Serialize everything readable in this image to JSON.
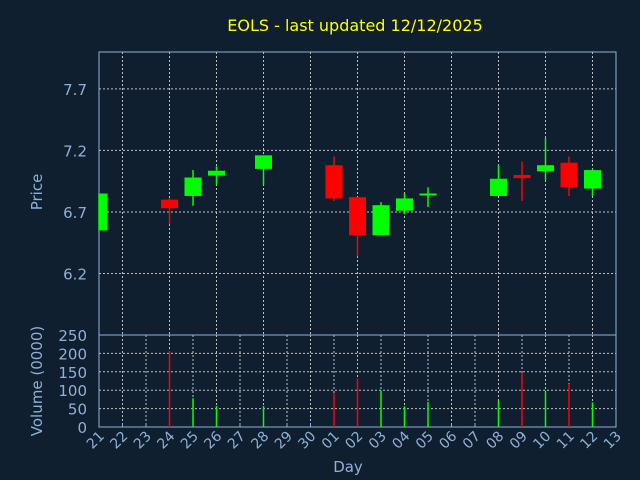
{
  "chart_data": {
    "type": "candlestick",
    "title": "EOLS - last updated 12/12/2025",
    "xlabel": "Day",
    "ylabel": "Price",
    "volume_label": "Volume (0000)",
    "x_ticks": [
      "21",
      "22",
      "23",
      "24",
      "25",
      "26",
      "27",
      "28",
      "29",
      "30",
      "01",
      "02",
      "03",
      "04",
      "05",
      "06",
      "07",
      "08",
      "09",
      "10",
      "11",
      "12",
      "13"
    ],
    "price_ticks": [
      6.2,
      6.7,
      7.2,
      7.7
    ],
    "price_ylim": [
      5.7,
      8.0
    ],
    "volume_ticks": [
      0,
      50,
      100,
      150,
      200,
      250
    ],
    "volume_ylim": [
      0,
      250
    ],
    "grid": true,
    "colors": {
      "up": "#00ff00",
      "down": "#ff0000",
      "title": "#ffff00",
      "axis": "#8fb0d8",
      "grid": "#c0c0c0",
      "background": "#0f1f30"
    },
    "candles": [
      {
        "day": "21",
        "open": 6.55,
        "high": 6.85,
        "low": 6.55,
        "close": 6.85,
        "volume": 0
      },
      {
        "day": "24",
        "open": 6.8,
        "high": 6.81,
        "low": 6.6,
        "close": 6.73,
        "volume": 207
      },
      {
        "day": "25",
        "open": 6.83,
        "high": 7.04,
        "low": 6.75,
        "close": 6.98,
        "volume": 78
      },
      {
        "day": "26",
        "open": 6.995,
        "high": 7.07,
        "low": 6.92,
        "close": 7.035,
        "volume": 57
      },
      {
        "day": "28",
        "open": 7.05,
        "high": 7.16,
        "low": 6.92,
        "close": 7.16,
        "volume": 57
      },
      {
        "day": "01",
        "open": 7.08,
        "high": 7.15,
        "low": 6.79,
        "close": 6.81,
        "volume": 92
      },
      {
        "day": "02",
        "open": 6.82,
        "high": 6.82,
        "low": 6.34,
        "close": 6.51,
        "volume": 132
      },
      {
        "day": "03",
        "open": 6.51,
        "high": 6.78,
        "low": 6.51,
        "close": 6.755,
        "volume": 99
      },
      {
        "day": "04",
        "open": 6.71,
        "high": 6.85,
        "low": 6.68,
        "close": 6.81,
        "volume": 56
      },
      {
        "day": "05",
        "open": 6.84,
        "high": 6.9,
        "low": 6.74,
        "close": 6.85,
        "volume": 68
      },
      {
        "day": "08",
        "open": 6.83,
        "high": 7.08,
        "low": 6.83,
        "close": 6.97,
        "volume": 71
      },
      {
        "day": "09",
        "open": 7.0,
        "high": 7.11,
        "low": 6.79,
        "close": 6.975,
        "volume": 146
      },
      {
        "day": "10",
        "open": 7.03,
        "high": 7.3,
        "low": 6.96,
        "close": 7.08,
        "volume": 99
      },
      {
        "day": "11",
        "open": 7.1,
        "high": 7.15,
        "low": 6.83,
        "close": 6.9,
        "volume": 117
      },
      {
        "day": "12",
        "open": 6.89,
        "high": 7.05,
        "low": 6.83,
        "close": 7.04,
        "volume": 67
      }
    ]
  }
}
